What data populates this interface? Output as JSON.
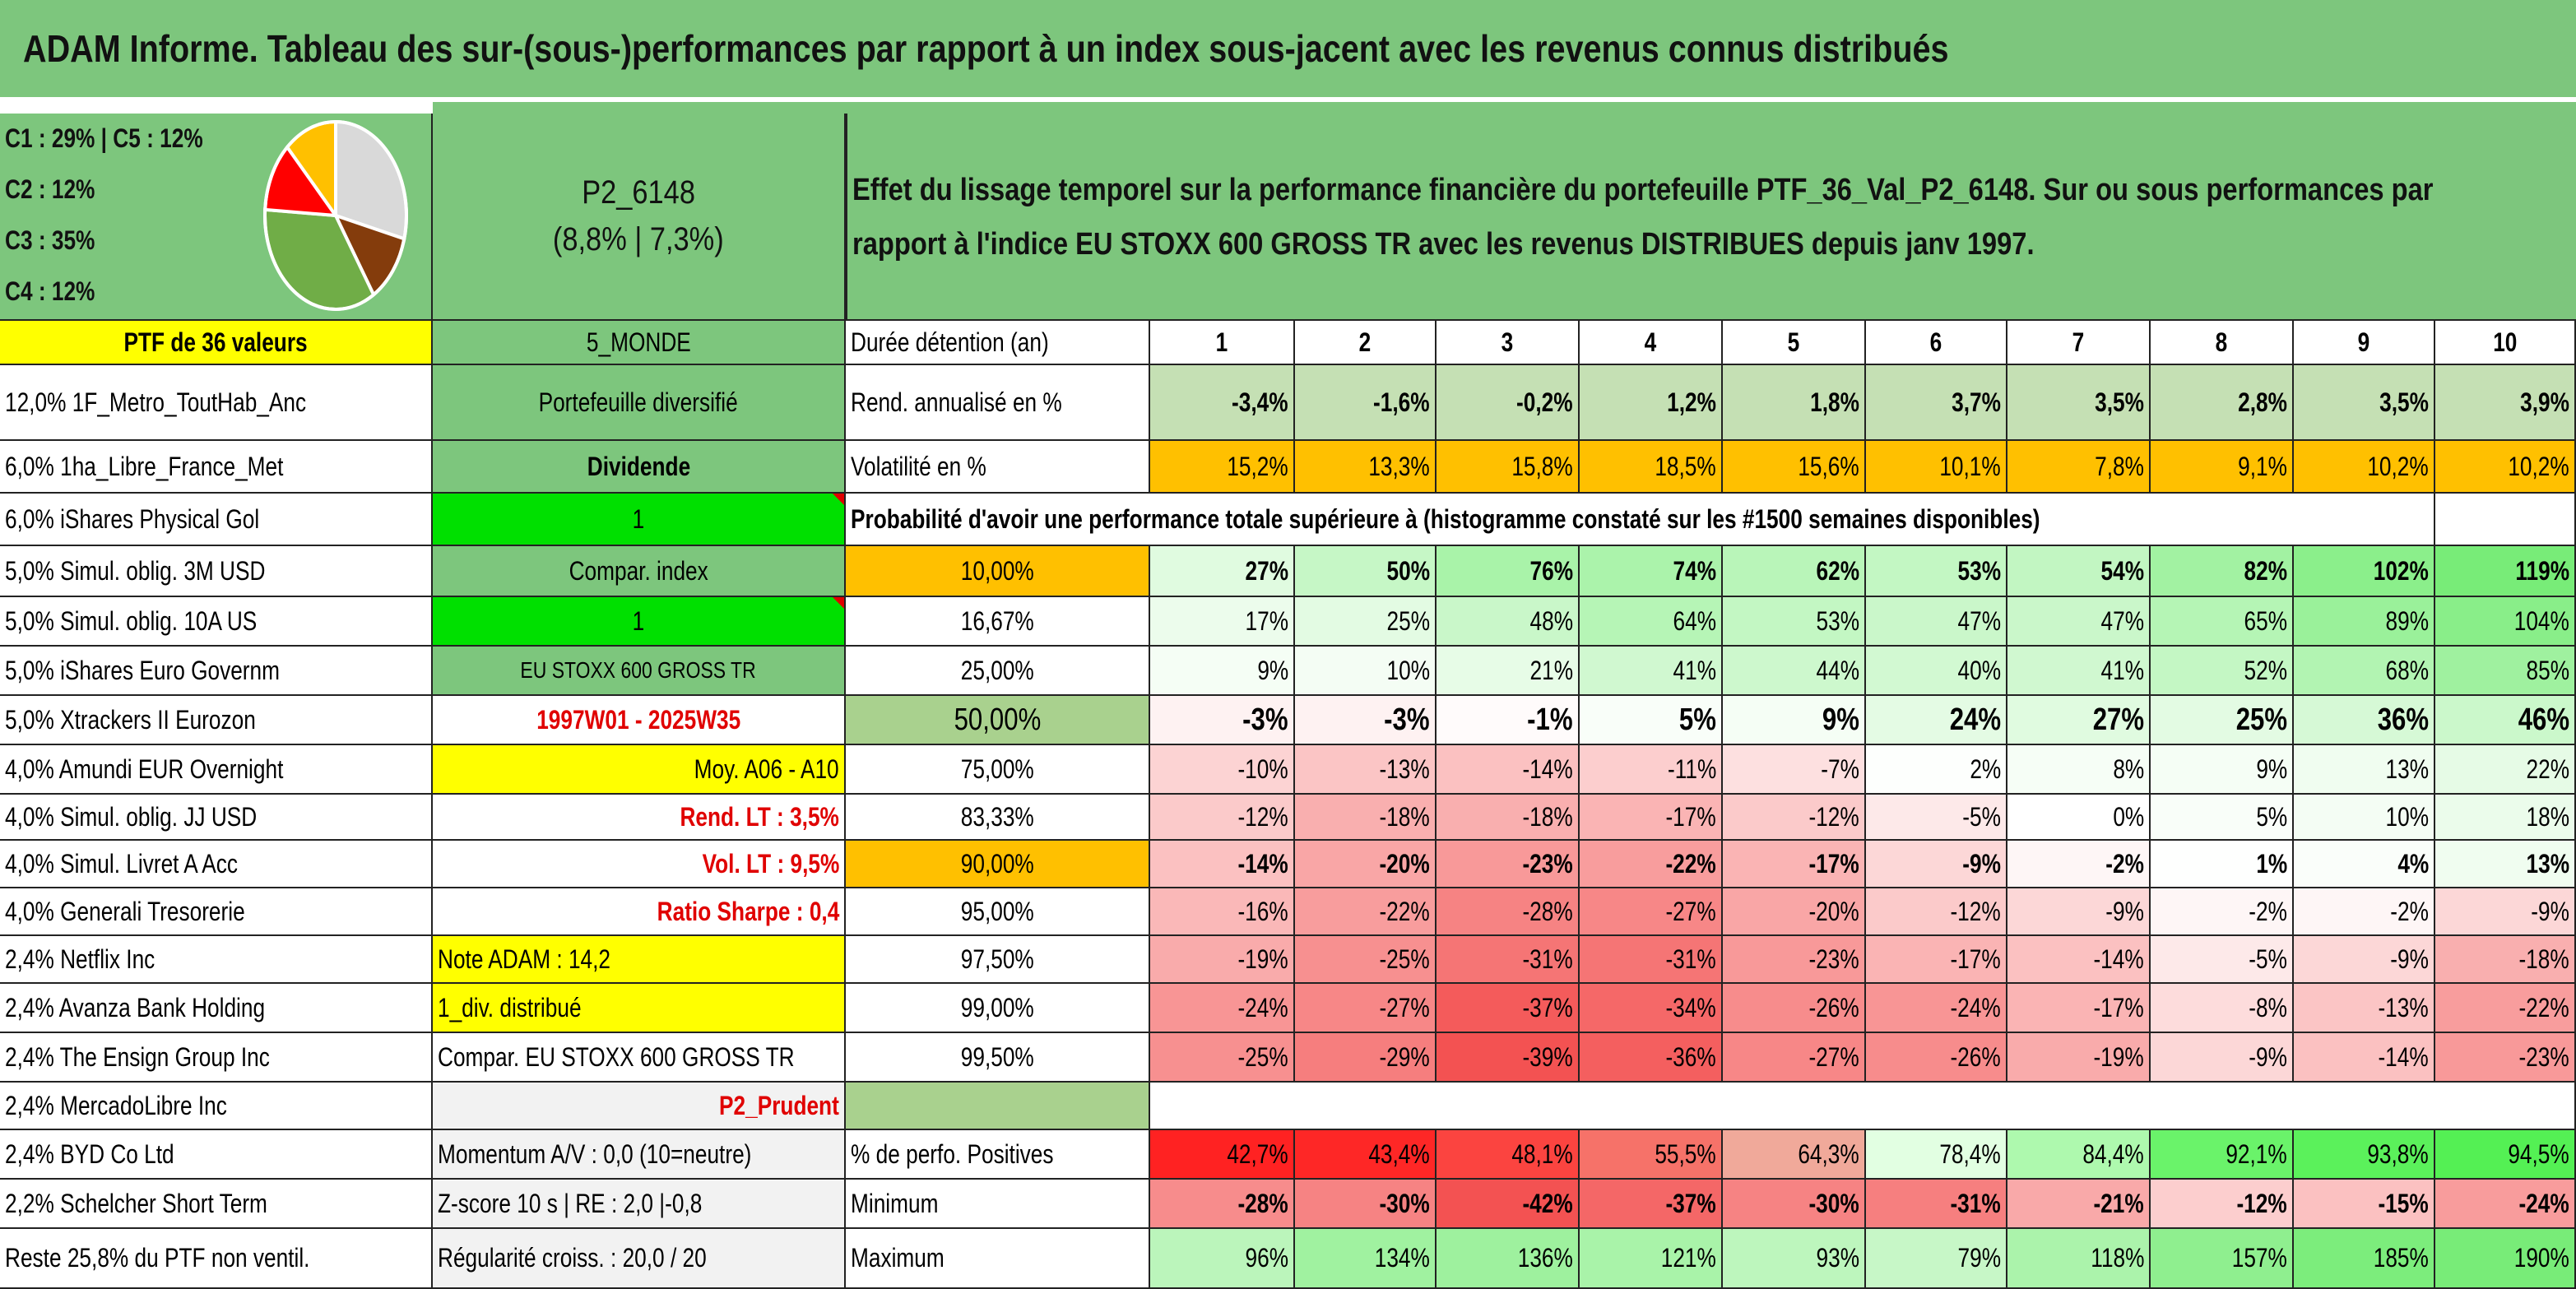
{
  "title": "ADAM Informe. Tableau des sur-(sous-)performances par rapport à un index sous-jacent avec les revenus connus distribués",
  "pie": {
    "labels": [
      "C1 : 29% | C5 : 12%",
      "C2 : 12%",
      "C3 : 35%",
      "C4 : 12%"
    ],
    "slices": [
      {
        "name": "C1",
        "value": 29,
        "color": "#d9d9d9"
      },
      {
        "name": "C5",
        "value": 12,
        "color": "#843c0c"
      },
      {
        "name": "C3",
        "value": 35,
        "color": "#70ad47"
      },
      {
        "name": "C2",
        "value": 12,
        "color": "#ff0000"
      },
      {
        "name": "C4",
        "value": 12,
        "color": "#ffc000"
      }
    ]
  },
  "portfolio": {
    "code": "P2_6148",
    "perf": "(8,8% | 7,3%)"
  },
  "description": [
    "Effet du lissage temporel sur la performance financière du portefeuille PTF_36_Val_P2_6148. Sur ou sous performances par",
    "rapport à l'indice EU STOXX 600 GROSS TR avec les revenus DISTRIBUES depuis janv 1997."
  ],
  "holdings_header": "PTF de 36 valeurs",
  "holdings": [
    "12,0% 1F_Metro_ToutHab_Anc",
    "6,0% 1ha_Libre_France_Met",
    "6,0% iShares Physical Gol",
    "5,0% Simul. oblig. 3M USD",
    "5,0% Simul. oblig. 10A US",
    "5,0% iShares Euro Governm",
    "5,0% Xtrackers II Eurozon",
    "4,0% Amundi EUR Overnight",
    "4,0% Simul. oblig. JJ USD",
    "4,0% Simul. Livret A Acc",
    "4,0% Generali Tresorerie",
    "2,4% Netflix Inc",
    "2,4% Avanza Bank Holding",
    "2,4% The Ensign Group Inc",
    "2,4% MercadoLibre Inc",
    "2,4% BYD Co Ltd",
    "2,2% Schelcher Short Term",
    "Reste 25,8% du PTF non ventil."
  ],
  "info": [
    "5_MONDE",
    "Portefeuille diversifié",
    "Dividende",
    "1",
    "Compar. index",
    "1",
    "EU STOXX 600 GROSS TR",
    "1997W01 - 2025W35",
    "Moy. A06 - A10",
    "Rend. LT : 3,5%",
    "Vol. LT : 9,5%",
    "Ratio Sharpe : 0,4",
    "Note ADAM : 14,2",
    "1_div. distribué",
    "Compar. EU STOXX 600 GROSS TR",
    "P2_Prudent",
    "Momentum A/V : 0,0 (10=neutre)",
    "Z-score 10 s | RE : 2,0 |-0,8",
    "Régularité croiss. : 20,0 / 20"
  ],
  "table": {
    "duration_label": "Durée détention (an)",
    "years": [
      "1",
      "2",
      "3",
      "4",
      "5",
      "6",
      "7",
      "8",
      "9",
      "10"
    ],
    "rend_label": "Rend. annualisé en %",
    "rend": [
      "-3,4%",
      "-1,6%",
      "-0,2%",
      "1,2%",
      "1,8%",
      "3,7%",
      "3,5%",
      "2,8%",
      "3,5%",
      "3,9%"
    ],
    "vol_label": "Volatilité en %",
    "vol": [
      "15,2%",
      "13,3%",
      "15,8%",
      "18,5%",
      "15,6%",
      "10,1%",
      "7,8%",
      "9,1%",
      "10,2%",
      "10,2%"
    ],
    "prob_title": "Probabilité d'avoir une performance totale supérieure à (histogramme constaté sur les #1500 semaines disponibles)",
    "quantiles": [
      {
        "label": "10,00%",
        "values": [
          "27%",
          "50%",
          "76%",
          "74%",
          "62%",
          "53%",
          "54%",
          "82%",
          "102%",
          "119%"
        ]
      },
      {
        "label": "16,67%",
        "values": [
          "17%",
          "25%",
          "48%",
          "64%",
          "53%",
          "47%",
          "47%",
          "65%",
          "89%",
          "104%"
        ]
      },
      {
        "label": "25,00%",
        "values": [
          "9%",
          "10%",
          "21%",
          "41%",
          "44%",
          "40%",
          "41%",
          "52%",
          "68%",
          "85%"
        ]
      },
      {
        "label": "50,00%",
        "values": [
          "-3%",
          "-3%",
          "-1%",
          "5%",
          "9%",
          "24%",
          "27%",
          "25%",
          "36%",
          "46%"
        ]
      },
      {
        "label": "75,00%",
        "values": [
          "-10%",
          "-13%",
          "-14%",
          "-11%",
          "-7%",
          "2%",
          "8%",
          "9%",
          "13%",
          "22%"
        ]
      },
      {
        "label": "83,33%",
        "values": [
          "-12%",
          "-18%",
          "-18%",
          "-17%",
          "-12%",
          "-5%",
          "0%",
          "5%",
          "10%",
          "18%"
        ]
      },
      {
        "label": "90,00%",
        "values": [
          "-14%",
          "-20%",
          "-23%",
          "-22%",
          "-17%",
          "-9%",
          "-2%",
          "1%",
          "4%",
          "13%"
        ]
      },
      {
        "label": "95,00%",
        "values": [
          "-16%",
          "-22%",
          "-28%",
          "-27%",
          "-20%",
          "-12%",
          "-9%",
          "-2%",
          "-2%",
          "-9%"
        ]
      },
      {
        "label": "97,50%",
        "values": [
          "-19%",
          "-25%",
          "-31%",
          "-31%",
          "-23%",
          "-17%",
          "-14%",
          "-5%",
          "-9%",
          "-18%"
        ]
      },
      {
        "label": "99,00%",
        "values": [
          "-24%",
          "-27%",
          "-37%",
          "-34%",
          "-26%",
          "-24%",
          "-17%",
          "-8%",
          "-13%",
          "-22%"
        ]
      },
      {
        "label": "99,50%",
        "values": [
          "-25%",
          "-29%",
          "-39%",
          "-36%",
          "-27%",
          "-26%",
          "-19%",
          "-9%",
          "-14%",
          "-23%"
        ]
      }
    ],
    "pos_label": "% de perfo. Positives",
    "pos": [
      "42,7%",
      "43,4%",
      "48,1%",
      "55,5%",
      "64,3%",
      "78,4%",
      "84,4%",
      "92,1%",
      "93,8%",
      "94,5%"
    ],
    "min_label": "Minimum",
    "min": [
      "-28%",
      "-30%",
      "-42%",
      "-37%",
      "-30%",
      "-31%",
      "-21%",
      "-12%",
      "-15%",
      "-24%"
    ],
    "max_label": "Maximum",
    "max": [
      "96%",
      "134%",
      "136%",
      "121%",
      "93%",
      "79%",
      "118%",
      "157%",
      "185%",
      "190%"
    ]
  },
  "colors": {
    "header_green": "#7dc67d",
    "bright_green": "#00e000",
    "yellow": "#ffff00",
    "orange": "#ffc000",
    "rend_green": "#c5e0b4",
    "median_green": "#a9d18e",
    "red_text": "#e00000"
  }
}
